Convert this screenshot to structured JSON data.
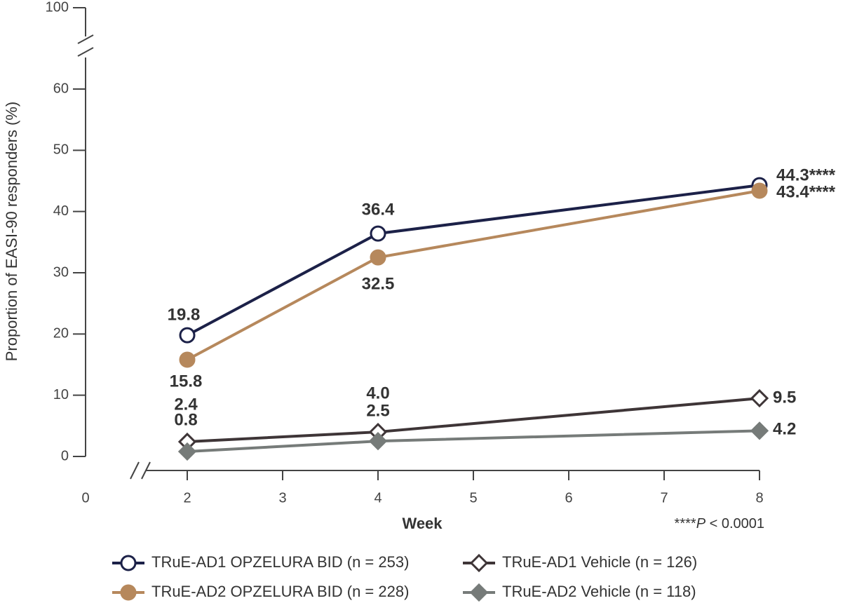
{
  "chart_data": {
    "type": "line",
    "y_label": "Proportion of EASI-90 responders (%)",
    "x_label": "Week",
    "footnote": [
      "****",
      "P",
      " < 0.0001"
    ],
    "x": [
      2,
      4,
      8
    ],
    "xlim": [
      0,
      8
    ],
    "xticks": [
      0,
      2,
      3,
      4,
      5,
      6,
      7,
      8
    ],
    "x_axis_break": true,
    "ylim": [
      0,
      100
    ],
    "yticks": [
      0,
      10,
      20,
      30,
      40,
      50,
      60,
      100
    ],
    "y_axis_break": true,
    "series": [
      {
        "name": "TRuE-AD1 OPZELURA BID (n = 253)",
        "color": "#1c2148",
        "marker": "circle",
        "filled": false,
        "values": [
          19.8,
          36.4,
          44.3
        ],
        "value_labels": [
          "19.8",
          "36.4",
          "44.3****"
        ]
      },
      {
        "name": "TRuE-AD2 OPZELURA BID (n = 228)",
        "color": "#b6885c",
        "marker": "circle",
        "filled": true,
        "values": [
          15.8,
          32.5,
          43.4
        ],
        "value_labels": [
          "15.8",
          "32.5",
          "43.4****"
        ]
      },
      {
        "name": "TRuE-AD1 Vehicle (n = 126)",
        "color": "#3e3537",
        "marker": "diamond",
        "filled": false,
        "values": [
          2.4,
          4.0,
          9.5
        ],
        "value_labels": [
          "2.4",
          "4.0",
          "9.5"
        ]
      },
      {
        "name": "TRuE-AD2 Vehicle (n = 118)",
        "color": "#767b79",
        "marker": "diamond",
        "filled": true,
        "values": [
          0.8,
          2.5,
          4.2
        ],
        "value_labels": [
          "0.8",
          "2.5",
          "4.2"
        ]
      }
    ]
  }
}
